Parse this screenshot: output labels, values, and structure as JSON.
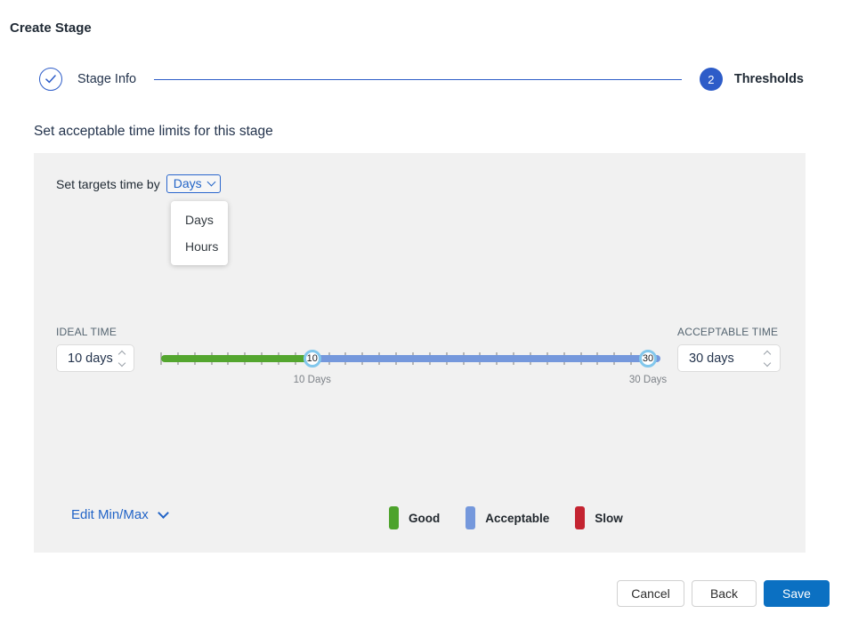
{
  "window": {
    "title": "Create Stage"
  },
  "stepper": {
    "steps": [
      {
        "label": "Stage Info",
        "status": "completed",
        "icon": "check-icon"
      },
      {
        "label": "Thresholds",
        "status": "active",
        "number": "2"
      }
    ]
  },
  "section_heading": "Set acceptable time limits for this stage",
  "targets": {
    "label": "Set targets time by",
    "selected": "Days",
    "options": [
      "Days",
      "Hours"
    ],
    "dropdown_open": true
  },
  "ideal_time": {
    "label": "IDEAL TIME",
    "value": "10 days"
  },
  "acceptable_time": {
    "label": "ACCEPTABLE TIME",
    "value": "30 days"
  },
  "slider": {
    "min": 1,
    "max": 30,
    "ideal": 10,
    "acceptable": 30,
    "ideal_handle_label": "10",
    "acceptable_handle_label": "30",
    "ideal_tick_label": "10 Days",
    "acceptable_tick_label": "30 Days",
    "colors": {
      "good": "#54a62f",
      "acceptable": "#7598dc"
    }
  },
  "edit_minmax_label": "Edit Min/Max",
  "legend": [
    {
      "label": "Good",
      "color": "#4da32c"
    },
    {
      "label": "Acceptable",
      "color": "#7598dc"
    },
    {
      "label": "Slow",
      "color": "#c42431"
    }
  ],
  "footer": {
    "cancel": "Cancel",
    "back": "Back",
    "save": "Save"
  },
  "theme": {
    "accent_blue": "#2d5cc8",
    "link_blue": "#2264c7",
    "save_blue": "#0b70c2",
    "panel_bg": "#f1f1f1"
  }
}
